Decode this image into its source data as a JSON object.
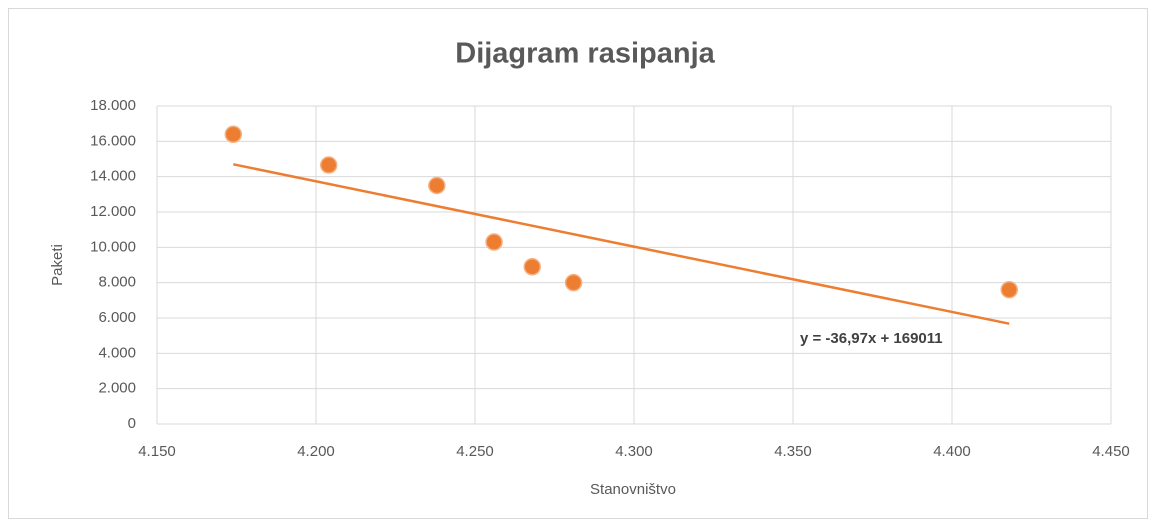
{
  "chart_data": {
    "type": "scatter",
    "title": "Dijagram rasipanja",
    "xlabel": "Stanovništvo",
    "ylabel": "Paketi",
    "series": [
      {
        "name": "Paketi",
        "color": "#ed7d31",
        "x": [
          4174,
          4204,
          4238,
          4256,
          4268,
          4281,
          4418
        ],
        "values": [
          16400,
          14660,
          13500,
          10300,
          8900,
          8000,
          7600
        ]
      }
    ],
    "trendline": {
      "label": "y = -36,97x + 169011",
      "slope": -36.97,
      "intercept": 169011,
      "color": "#ed7d31"
    },
    "xlim": [
      4150,
      4450
    ],
    "xticks": [
      {
        "value": 4150,
        "label": "4.150"
      },
      {
        "value": 4200,
        "label": "4.200"
      },
      {
        "value": 4250,
        "label": "4.250"
      },
      {
        "value": 4300,
        "label": "4.300"
      },
      {
        "value": 4350,
        "label": "4.350"
      },
      {
        "value": 4400,
        "label": "4.400"
      },
      {
        "value": 4450,
        "label": "4.450"
      }
    ],
    "ylim": [
      0,
      18000
    ],
    "yticks": [
      0,
      {
        "value": 2000,
        "label": "2.000"
      },
      {
        "value": 4000,
        "label": "4.000"
      },
      {
        "value": 6000,
        "label": "6.000"
      },
      {
        "value": 8000,
        "label": "8.000"
      },
      {
        "value": 10000,
        "label": "10.000"
      },
      {
        "value": 12000,
        "label": "12.000"
      },
      {
        "value": 14000,
        "label": "14.000"
      },
      {
        "value": 16000,
        "label": "16.000"
      },
      {
        "value": 18000,
        "label": "18.000"
      }
    ],
    "grid": true
  }
}
